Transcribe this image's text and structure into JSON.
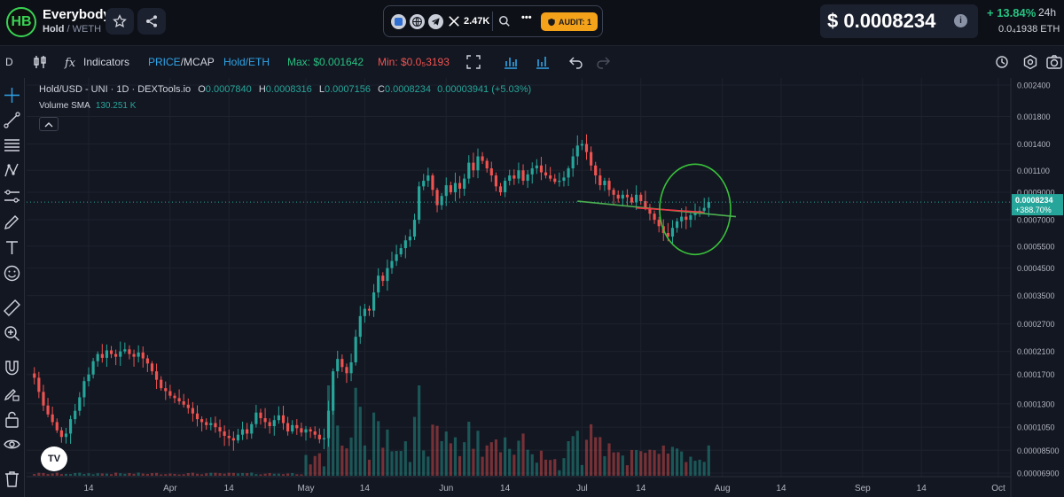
{
  "header": {
    "token_name": "Everybody",
    "token_symbol": "Hold",
    "pair_quote": "/ WETH",
    "logo_text": "HB",
    "social": {
      "followers": "2.47K",
      "more": "•••",
      "audit_label": "AUDIT: 1"
    },
    "price": "$ 0.0008234",
    "change_pct": "+ 13.84%",
    "change_period": "24h",
    "eth_price": "0.0₄1938  ETH"
  },
  "toolbar": {
    "interval": "D",
    "indicators": "Indicators",
    "price_mcap_a": "PRICE",
    "price_mcap_sep": "/",
    "price_mcap_b": "MCAP",
    "pair_toggle": "Hold/ETH",
    "max_label": "Max: $0.001642",
    "min_label": "Min: $0.0₅3193"
  },
  "colors": {
    "up": "#26a69a",
    "down": "#ef5350",
    "background": "#131722",
    "grid": "#1e222d",
    "annotation_circle": "#39c23a",
    "trend_green": "#4caf50",
    "trend_red": "#f23645",
    "accent_blue": "#2fa4e7"
  },
  "legend": {
    "symbol": "Hold/USD - UNI · 1D · DEXTools.io",
    "o_label": "O",
    "o_value": "0.0007840",
    "h_label": "H",
    "h_value": "0.0008316",
    "l_label": "L",
    "l_value": "0.0007156",
    "c_label": "C",
    "c_value": "0.0008234",
    "change": "0.00003941 (+5.03%)",
    "volume_label": "Volume SMA",
    "volume_value": "130.251 K"
  },
  "chart_data": {
    "type": "candlestick",
    "y_scale": "log",
    "grid": true,
    "y_ticks": [
      "0.002400",
      "0.001800",
      "0.001400",
      "0.001100",
      "0.0009000",
      "0.0007000",
      "0.0005500",
      "0.0004500",
      "0.0003500",
      "0.0002700",
      "0.0002100",
      "0.0001700",
      "0.0001300",
      "0.0001050",
      "0.00008500",
      "0.00006900"
    ],
    "y_tick_values": [
      0.0024,
      0.0018,
      0.0014,
      0.0011,
      0.0009,
      0.0007,
      0.00055,
      0.00045,
      0.00035,
      0.00027,
      0.00021,
      0.00017,
      0.00013,
      0.000105,
      8.5e-05,
      6.9e-05
    ],
    "x_ticks": [
      "14",
      "Apr",
      "14",
      "May",
      "14",
      "Jun",
      "14",
      "Jul",
      "14",
      "Aug",
      "14",
      "Sep",
      "14",
      "Oct"
    ],
    "x_tick_dates": [
      "2024-03-14",
      "2024-04-01",
      "2024-04-14",
      "2024-05-01",
      "2024-05-14",
      "2024-06-01",
      "2024-06-14",
      "2024-07-01",
      "2024-07-14",
      "2024-08-01",
      "2024-08-14",
      "2024-09-01",
      "2024-09-14",
      "2024-10-01"
    ],
    "first_date": "2024-03-02",
    "closes": [
      0.000165,
      0.000145,
      0.000128,
      0.000118,
      0.00011,
      0.000102,
      9.6e-05,
      9.9e-05,
      0.000113,
      0.000122,
      0.000138,
      0.00016,
      0.00017,
      0.000192,
      0.000205,
      0.000198,
      0.000212,
      0.000205,
      0.0002,
      0.00021,
      0.000214,
      0.000205,
      0.0002,
      0.000208,
      0.000197,
      0.000188,
      0.000175,
      0.000162,
      0.00015,
      0.000146,
      0.00014,
      0.000137,
      0.000133,
      0.000129,
      0.000125,
      0.000119,
      0.000113,
      0.00011,
      0.000107,
      0.000109,
      0.000105,
      0.000101,
      9.7e-05,
      9.5e-05,
      9.3e-05,
      9.8e-05,
      0.000103,
      9.9e-05,
      0.000108,
      0.00012,
      0.000114,
      0.00011,
      0.000106,
      0.000112,
      0.000117,
      0.000109,
      0.000101,
      0.000107,
      0.000104,
      0.0001,
      0.000103,
      0.000101,
      9.8e-05,
      9.4e-05,
      9.5e-05,
      0.000122,
      0.000175,
      0.000196,
      0.000182,
      0.000172,
      0.00019,
      0.00024,
      0.00029,
      0.00031,
      0.000305,
      0.00036,
      0.00042,
      0.0004,
      0.00045,
      0.00048,
      0.00051,
      0.00054,
      0.00058,
      0.0006,
      0.0007,
      0.00095,
      0.001,
      0.00105,
      0.00092,
      0.0008,
      0.00087,
      0.00096,
      0.0009,
      0.00098,
      0.00093,
      0.00102,
      0.00118,
      0.0011,
      0.00125,
      0.0012,
      0.00112,
      0.00105,
      0.00095,
      0.0009,
      0.001,
      0.00105,
      0.00102,
      0.0011,
      0.001,
      0.00106,
      0.00112,
      0.00115,
      0.00108,
      0.00105,
      0.00102,
      0.00099,
      0.001,
      0.00103,
      0.00112,
      0.00125,
      0.00138,
      0.0014,
      0.0013,
      0.00115,
      0.00105,
      0.00096,
      0.001,
      0.00092,
      0.00088,
      0.00085,
      0.00088,
      0.00086,
      0.00082,
      0.00088,
      0.00083,
      0.00078,
      0.00074,
      0.0007,
      0.00066,
      0.00062,
      0.0006,
      0.00065,
      0.00069,
      0.00072,
      0.0007,
      0.00073,
      0.00075,
      0.00076,
      0.00078,
      0.000823
    ]
  },
  "annotations": {
    "current_price_label": "0.0008234",
    "current_change_label": "+388.70%"
  },
  "toolbar_icons": [
    "candles-icon",
    "fx-icon",
    "bars-icon",
    "compare-icon",
    "undo-icon",
    "redo-icon",
    "settings-icon",
    "camera-icon",
    "fullscreen-icon",
    "replay-icon"
  ],
  "left_tool_icons": [
    "crosshair-icon",
    "trendline-icon",
    "fib-icon",
    "pattern-icon",
    "measure-icon",
    "brush-icon",
    "text-icon",
    "emoji-icon",
    "ruler-icon",
    "zoom-icon",
    "magnet-icon",
    "lock-draw-icon",
    "lock-icon",
    "eye-icon",
    "trash-icon"
  ]
}
